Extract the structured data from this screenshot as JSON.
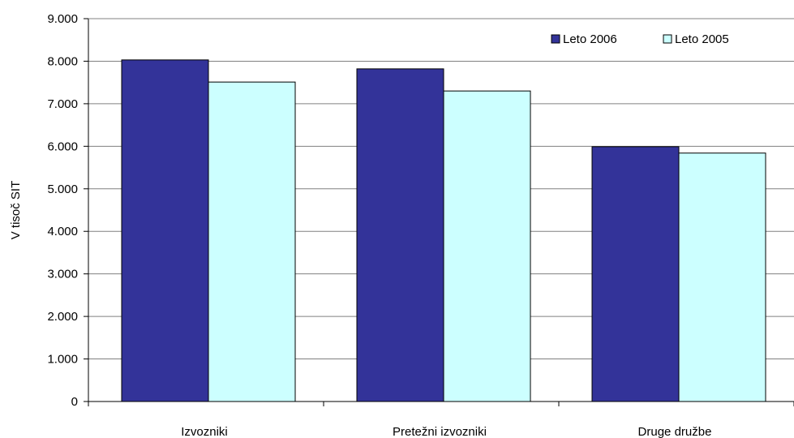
{
  "chart_data": {
    "type": "bar",
    "title": "",
    "xlabel": "",
    "ylabel": "V tisoč SIT",
    "ylim": [
      0,
      9000
    ],
    "ytick_step": 1000,
    "ytick_labels": [
      "0",
      "1.000",
      "2.000",
      "3.000",
      "4.000",
      "5.000",
      "6.000",
      "7.000",
      "8.000",
      "9.000"
    ],
    "categories": [
      "Izvozniki",
      "Pretežni izvozniki",
      "Druge družbe"
    ],
    "series": [
      {
        "name": "Leto 2006",
        "color": "#333399",
        "values": [
          8030,
          7820,
          5990
        ]
      },
      {
        "name": "Leto 2005",
        "color": "#CCFFFF",
        "values": [
          7510,
          7300,
          5840
        ]
      }
    ],
    "grid": true,
    "legend_position": "top-right",
    "plot_background": "#ffffff"
  }
}
